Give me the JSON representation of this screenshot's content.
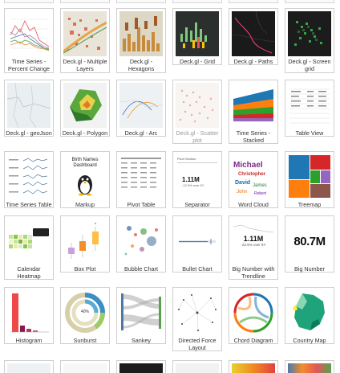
{
  "gallery": {
    "tiles": [
      {
        "label": "Time Series - Percent Change"
      },
      {
        "label": "Deck.gl - Multiple Layers"
      },
      {
        "label": "Deck.gl - Hexagons"
      },
      {
        "label": "Deck.gl - Grid"
      },
      {
        "label": "Deck.gl - Paths"
      },
      {
        "label": "Deck.gl - Screen grid"
      },
      {
        "label": "Deck.gl - geoJson"
      },
      {
        "label": "Deck.gl - Polygon"
      },
      {
        "label": "Deck.gl - Arc"
      },
      {
        "label": "Deck.gl - Scatter plot"
      },
      {
        "label": "Time Series - Stacked"
      },
      {
        "label": "Table View"
      },
      {
        "label": "Time Series Table"
      },
      {
        "label": "Markup"
      },
      {
        "label": "Pivot Table"
      },
      {
        "label": "Separator"
      },
      {
        "label": "Word Cloud"
      },
      {
        "label": "Treemap"
      },
      {
        "label": "Calendar Heatmap"
      },
      {
        "label": "Box Plot"
      },
      {
        "label": "Bubble Chart"
      },
      {
        "label": "Bullet Chart"
      },
      {
        "label": "Big Number with Trendline"
      },
      {
        "label": "Big Number"
      },
      {
        "label": "Histogram"
      },
      {
        "label": "Sunburst"
      },
      {
        "label": "Sankey"
      },
      {
        "label": "Directed Force Layout"
      },
      {
        "label": "Chord Diagram"
      },
      {
        "label": "Country Map"
      }
    ],
    "thumb_text": {
      "markup_line1": "Birth Names",
      "markup_line2": "Dashboard",
      "separator_value": "1.11M",
      "separator_delta": "-12.5% over 5Y",
      "separator_header": "Pivot Section",
      "trendline_value": "1.11M",
      "trendline_delta": "-22.5% over 5Y",
      "big_number_value": "80.7M",
      "sunburst_center": "40%",
      "wordcloud_words": [
        "Michael",
        "Christopher",
        "David",
        "James",
        "John",
        "Robert"
      ]
    }
  },
  "colors": {
    "tile_border": "#cfcfcf",
    "label_text": "#333333",
    "map_bg": "#e8e4d8",
    "dark_map_bg": "#1a1a1a",
    "accent_red": "#d9534f",
    "accent_green": "#33cc55",
    "histogram_bar": "#ef4848",
    "treemap_colors": [
      "#1f77b4",
      "#ff7f0e",
      "#2ca02c",
      "#d62728",
      "#9467bd",
      "#8c564b"
    ]
  }
}
